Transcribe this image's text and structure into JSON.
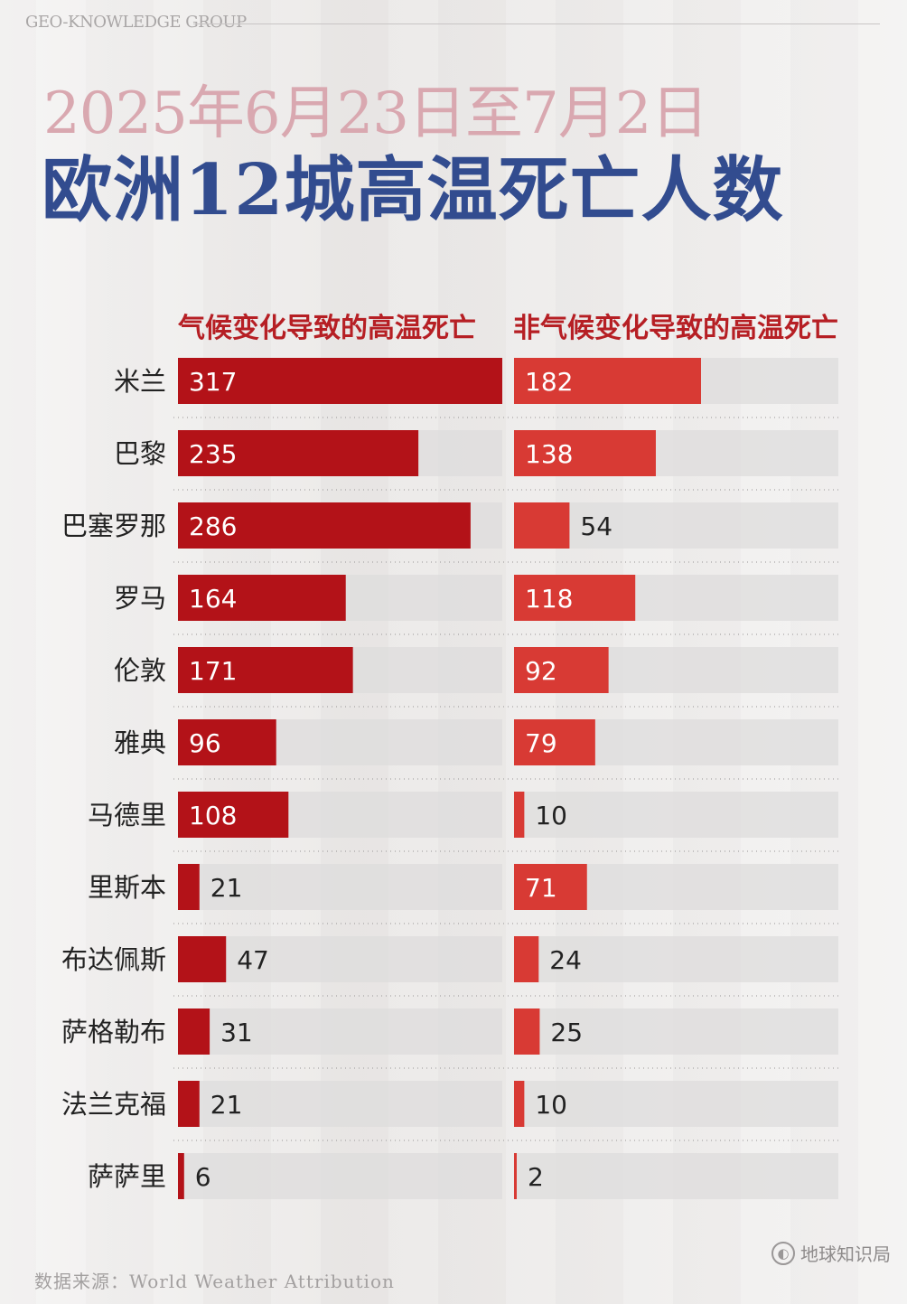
{
  "brand_top": "GEO-KNOWLEDGE GROUP",
  "subtitle": "2025年6月23日至7月2日",
  "title": "欧洲12城高温死亡人数",
  "source": "数据来源：World Weather Attribution",
  "logo_text": "地球知识局",
  "colors": {
    "climate": "#b31218",
    "non_climate": "#d83a34",
    "track": "#dedcdc",
    "title": "#324c8f",
    "subtitle": "#d9a8b0",
    "header": "#b61f24"
  },
  "chart_data": {
    "type": "bar",
    "orientation": "horizontal",
    "categories": [
      "米兰",
      "巴黎",
      "巴塞罗那",
      "罗马",
      "伦敦",
      "雅典",
      "马德里",
      "里斯本",
      "布达佩斯",
      "萨格勒布",
      "法兰克福",
      "萨萨里"
    ],
    "series": [
      {
        "name": "气候变化导致的高温死亡",
        "values": [
          317,
          235,
          286,
          164,
          171,
          96,
          108,
          21,
          47,
          31,
          21,
          6
        ]
      },
      {
        "name": "非气候变化导致的高温死亡",
        "values": [
          182,
          138,
          54,
          118,
          92,
          79,
          10,
          71,
          24,
          25,
          10,
          2
        ]
      }
    ],
    "title": "欧洲12城高温死亡人数",
    "grid": false,
    "legend": "top"
  }
}
